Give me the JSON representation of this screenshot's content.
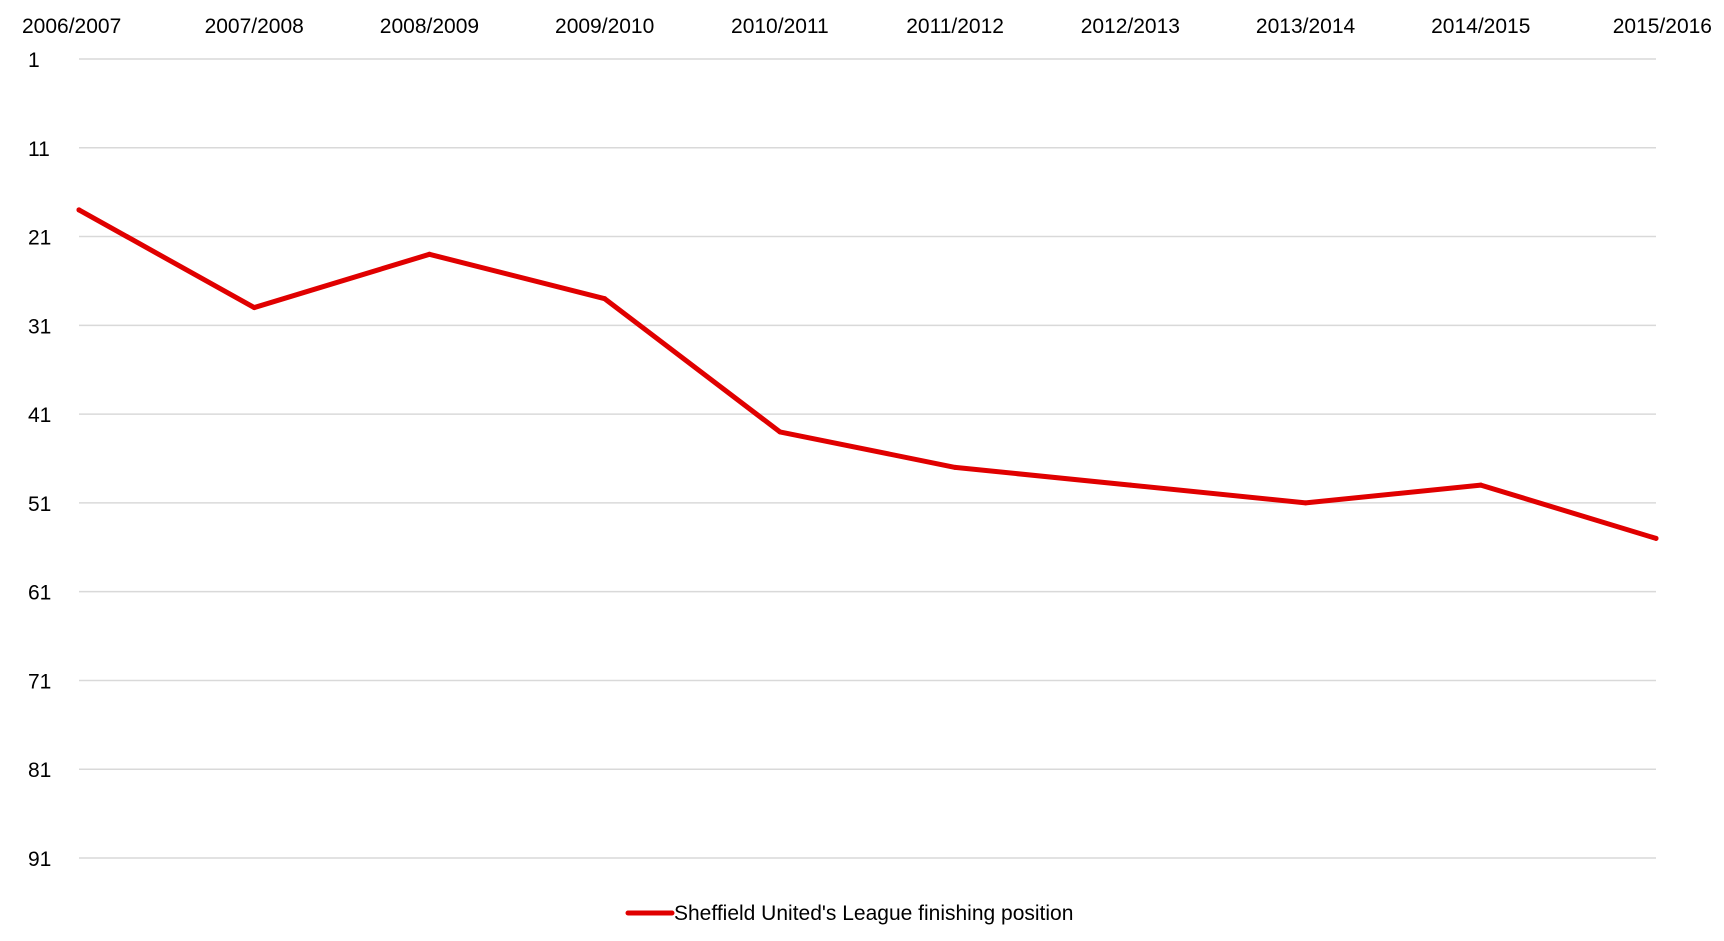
{
  "chart_data": {
    "type": "line",
    "categories": [
      "2006/2007",
      "2007/2008",
      "2008/2009",
      "2009/2010",
      "2010/2011",
      "2011/2012",
      "2012/2013",
      "2013/2014",
      "2014/2015",
      "2015/2016"
    ],
    "series": [
      {
        "name": "Sheffield United's League finishing position",
        "values": [
          18,
          29,
          23,
          28,
          43,
          47,
          49,
          51,
          49,
          55
        ],
        "color": "#e00000"
      }
    ],
    "y_ticks": [
      "1",
      "11",
      "21",
      "31",
      "41",
      "51",
      "61",
      "71",
      "81",
      "91"
    ],
    "ylim": [
      1,
      91
    ],
    "y_reversed": true,
    "x_axis_position": "top",
    "grid": true,
    "legend_position": "bottom-center",
    "title": "",
    "xlabel": "",
    "ylabel": ""
  }
}
